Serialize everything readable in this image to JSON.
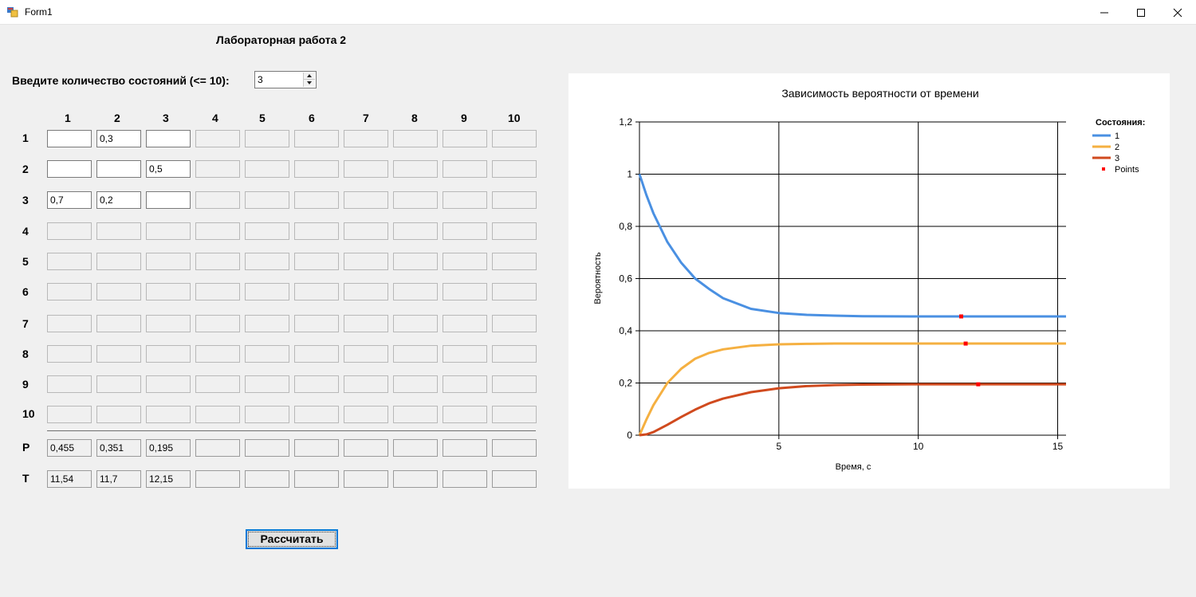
{
  "window": {
    "title": "Form1"
  },
  "heading": "Лабораторная работа 2",
  "states_input": {
    "label": "Введите количество состояний (<= 10):",
    "value": "3"
  },
  "matrix": {
    "column_headers": [
      "1",
      "2",
      "3",
      "4",
      "5",
      "6",
      "7",
      "8",
      "9",
      "10"
    ],
    "row_headers": [
      "1",
      "2",
      "3",
      "4",
      "5",
      "6",
      "7",
      "8",
      "9",
      "10"
    ],
    "values": [
      [
        "",
        "0,3",
        ""
      ],
      [
        "",
        "",
        "0,5"
      ],
      [
        "0,7",
        "0,2",
        ""
      ]
    ],
    "active_size": 3
  },
  "results": {
    "p_label": "P",
    "p_values": [
      "0,455",
      "0,351",
      "0,195",
      "",
      "",
      "",
      "",
      "",
      "",
      ""
    ],
    "t_label": "T",
    "t_values": [
      "11,54",
      "11,7",
      "12,15",
      "",
      "",
      "",
      "",
      "",
      "",
      ""
    ]
  },
  "calculate_button": "Рассчитать",
  "chart_data": {
    "type": "line",
    "title": "Зависимость вероятности от времени",
    "xlabel": "Время, с",
    "ylabel": "Вероятность",
    "xlim": [
      0,
      15.3
    ],
    "ylim": [
      0,
      1.2
    ],
    "x_ticks": [
      "5",
      "10",
      "15"
    ],
    "x_tick_values": [
      5,
      10,
      15
    ],
    "y_ticks": [
      "0",
      "0,2",
      "0,4",
      "0,6",
      "0,8",
      "1",
      "1,2"
    ],
    "y_tick_values": [
      0,
      0.2,
      0.4,
      0.6,
      0.8,
      1,
      1.2
    ],
    "grid": true,
    "legend": {
      "title": "Состояния:",
      "position": "top-right"
    },
    "series": [
      {
        "name": "1",
        "color": "#4a90e2",
        "x": [
          0,
          0.25,
          0.5,
          1,
          1.5,
          2,
          2.5,
          3,
          4,
          5,
          6,
          7,
          8,
          10,
          12,
          15.3
        ],
        "values": [
          1.0,
          0.92,
          0.85,
          0.74,
          0.66,
          0.6,
          0.56,
          0.525,
          0.484,
          0.468,
          0.461,
          0.458,
          0.456,
          0.455,
          0.455,
          0.455
        ]
      },
      {
        "name": "2",
        "color": "#f5b041",
        "x": [
          0,
          0.25,
          0.5,
          1,
          1.5,
          2,
          2.5,
          3,
          4,
          5,
          6,
          7,
          8,
          10,
          12,
          15.3
        ],
        "values": [
          0.0,
          0.06,
          0.115,
          0.2,
          0.255,
          0.293,
          0.315,
          0.329,
          0.343,
          0.348,
          0.35,
          0.351,
          0.351,
          0.351,
          0.351,
          0.351
        ]
      },
      {
        "name": "3",
        "color": "#d04a1e",
        "x": [
          0,
          0.25,
          0.5,
          1,
          1.5,
          2,
          2.5,
          3,
          4,
          5,
          6,
          7,
          8,
          10,
          12,
          15.3
        ],
        "values": [
          0.0,
          0.003,
          0.012,
          0.04,
          0.07,
          0.098,
          0.122,
          0.14,
          0.165,
          0.18,
          0.188,
          0.192,
          0.194,
          0.195,
          0.195,
          0.195
        ]
      },
      {
        "name": "Points",
        "type": "scatter",
        "color": "#ff0000",
        "x": [
          11.54,
          11.7,
          12.15
        ],
        "values": [
          0.455,
          0.351,
          0.195
        ]
      }
    ]
  }
}
